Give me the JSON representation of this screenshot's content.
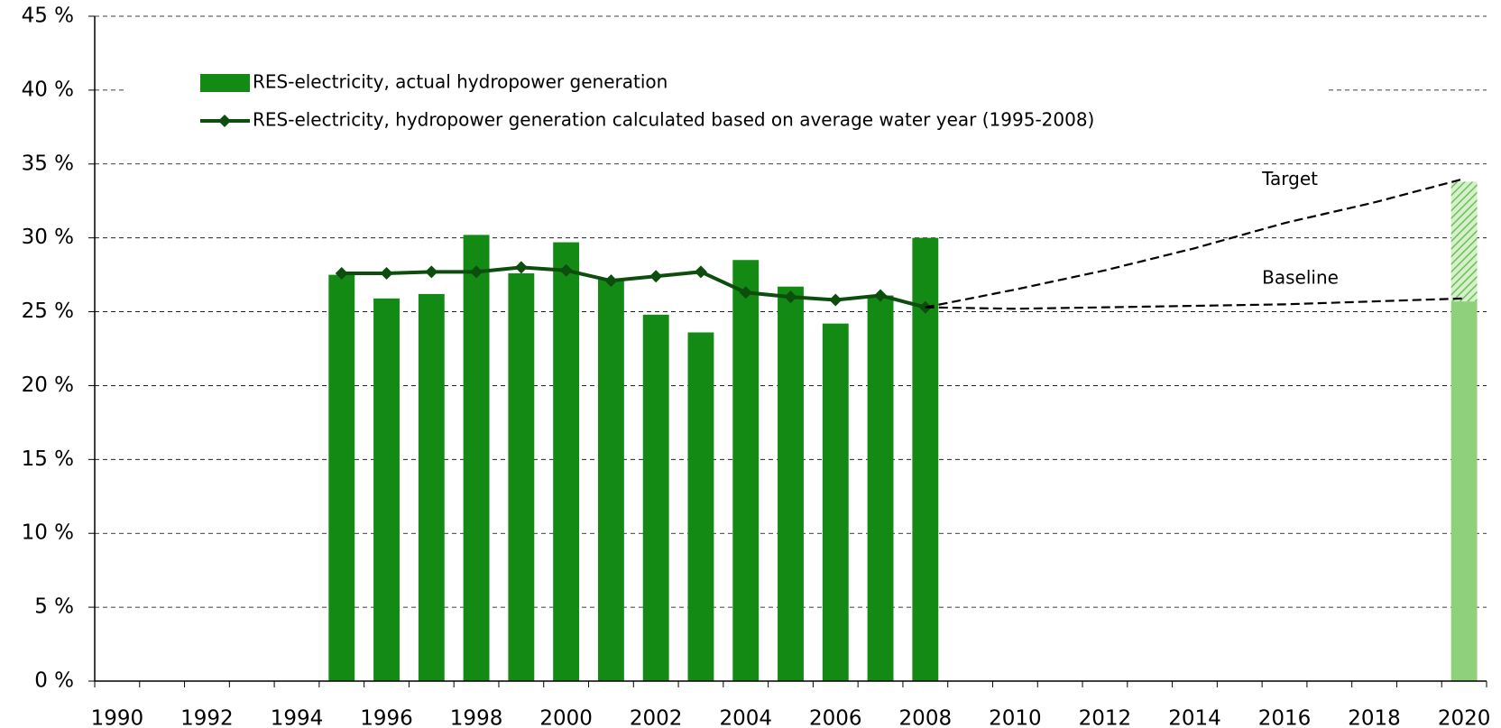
{
  "chart_data": {
    "type": "bar",
    "categories": [
      "1990",
      null,
      "1992",
      null,
      "1994",
      null,
      "1996",
      null,
      "1998",
      null,
      "2000",
      null,
      "2002",
      null,
      "2004",
      null,
      "2006",
      null,
      "2008",
      null,
      "2010",
      null,
      "2012",
      null,
      "2014",
      null,
      "2016",
      null,
      "2018",
      null,
      "2020"
    ],
    "ylim": [
      0,
      45
    ],
    "yticks": [
      {
        "value": 0,
        "label": "0 %"
      },
      {
        "value": 5,
        "label": "5 %"
      },
      {
        "value": 10,
        "label": "10 %"
      },
      {
        "value": 15,
        "label": "15 %"
      },
      {
        "value": 20,
        "label": "20 %"
      },
      {
        "value": 25,
        "label": "25 %"
      },
      {
        "value": 30,
        "label": "30 %"
      },
      {
        "value": 35,
        "label": "35 %"
      },
      {
        "value": 40,
        "label": "40 %"
      },
      {
        "value": 45,
        "label": "45 %"
      }
    ],
    "grid": true,
    "series": [
      {
        "name": "RES-electricity, actual hydropower generation",
        "type": "bar",
        "color": "#138a13",
        "values": [
          null,
          null,
          null,
          null,
          null,
          27.5,
          25.9,
          26.2,
          30.2,
          27.6,
          29.7,
          27.2,
          24.8,
          23.6,
          28.5,
          26.7,
          24.2,
          26.1,
          30.0,
          null,
          null,
          null,
          null,
          null,
          null,
          null,
          null,
          null,
          null,
          null,
          null
        ]
      },
      {
        "name": "RES-electricity, hydropower generation calculated based on average water year (1995-2008)",
        "type": "line",
        "color": "#0d4d0d",
        "values": [
          null,
          null,
          null,
          null,
          null,
          27.6,
          27.6,
          27.7,
          27.7,
          28.0,
          27.8,
          27.1,
          27.4,
          27.7,
          26.3,
          26.0,
          25.8,
          26.1,
          25.3,
          null,
          null,
          null,
          null,
          null,
          null,
          null,
          null,
          null,
          null,
          null,
          null
        ]
      },
      {
        "name": "Target",
        "type": "dashed",
        "color": "#000000",
        "in_legend": false,
        "values": [
          null,
          null,
          null,
          null,
          null,
          null,
          null,
          null,
          null,
          null,
          null,
          null,
          null,
          null,
          null,
          null,
          null,
          null,
          25.3,
          null,
          26.5,
          null,
          27.8,
          null,
          29.3,
          null,
          31.0,
          null,
          32.4,
          null,
          34.0
        ]
      },
      {
        "name": "Baseline",
        "type": "dashed",
        "color": "#000000",
        "in_legend": false,
        "values": [
          null,
          null,
          null,
          null,
          null,
          null,
          null,
          null,
          null,
          null,
          null,
          null,
          null,
          null,
          null,
          null,
          null,
          null,
          25.3,
          null,
          25.2,
          null,
          25.3,
          null,
          25.4,
          null,
          25.5,
          null,
          25.7,
          null,
          25.9
        ]
      }
    ],
    "projection_bars": [
      {
        "color": "#8fd17a",
        "pattern": "solid",
        "values": [
          null,
          null,
          null,
          null,
          null,
          null,
          null,
          null,
          null,
          null,
          null,
          null,
          null,
          null,
          null,
          null,
          null,
          null,
          null,
          null,
          null,
          null,
          null,
          null,
          null,
          null,
          null,
          null,
          null,
          null,
          25.7
        ]
      },
      {
        "color": "#8fd17a",
        "pattern": "hatched",
        "values": [
          null,
          null,
          null,
          null,
          null,
          null,
          null,
          null,
          null,
          null,
          null,
          null,
          null,
          null,
          null,
          null,
          null,
          null,
          null,
          null,
          null,
          null,
          null,
          null,
          null,
          null,
          null,
          null,
          null,
          null,
          8.1
        ]
      }
    ]
  }
}
